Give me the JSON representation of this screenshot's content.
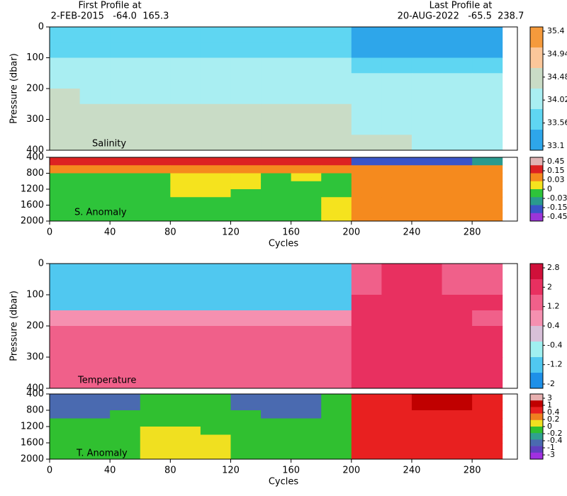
{
  "header": {
    "first_title": "First Profile at",
    "first_info": "2-FEB-2015   -64.0  165.3",
    "last_title": "Last Profile at",
    "last_info": "20-AUG-2022   -65.5  238.7"
  },
  "chart_data": [
    {
      "type": "heatmap",
      "label": "Salinity",
      "ylabel": "Pressure (dbar)",
      "yreversed": true,
      "xlim": [
        0,
        310
      ],
      "ylim": [
        0,
        400
      ],
      "yticks": [
        0,
        100,
        200,
        300,
        400
      ],
      "x": [
        10,
        30,
        50,
        70,
        90,
        110,
        130,
        150,
        170,
        190,
        210,
        230,
        250,
        270,
        290
      ],
      "y": [
        25,
        75,
        125,
        175,
        225,
        275,
        325,
        375
      ],
      "values": [
        [
          33.9,
          33.9,
          33.9,
          33.9,
          33.9,
          33.9,
          33.9,
          33.9,
          33.9,
          33.9,
          33.4,
          33.4,
          33.4,
          33.4,
          33.4
        ],
        [
          33.9,
          33.9,
          33.9,
          33.9,
          33.9,
          33.9,
          33.9,
          33.9,
          33.9,
          33.9,
          33.5,
          33.5,
          33.5,
          33.5,
          33.5
        ],
        [
          34.3,
          34.3,
          34.3,
          34.3,
          34.3,
          34.3,
          34.3,
          34.3,
          34.3,
          34.3,
          33.9,
          33.9,
          33.9,
          33.9,
          33.9
        ],
        [
          34.4,
          34.4,
          34.4,
          34.4,
          34.4,
          34.4,
          34.4,
          34.4,
          34.4,
          34.4,
          34.1,
          34.1,
          34.1,
          34.1,
          34.1
        ],
        [
          34.5,
          34.4,
          34.4,
          34.4,
          34.4,
          34.4,
          34.4,
          34.4,
          34.4,
          34.4,
          34.3,
          34.3,
          34.3,
          34.3,
          34.3
        ],
        [
          34.7,
          34.7,
          34.7,
          34.7,
          34.7,
          34.7,
          34.7,
          34.7,
          34.7,
          34.7,
          34.4,
          34.4,
          34.4,
          34.4,
          34.4
        ],
        [
          34.7,
          34.7,
          34.7,
          34.7,
          34.7,
          34.7,
          34.7,
          34.7,
          34.7,
          34.7,
          34.4,
          34.4,
          34.4,
          34.4,
          34.4
        ],
        [
          34.7,
          34.7,
          34.7,
          34.7,
          34.7,
          34.7,
          34.7,
          34.7,
          34.7,
          34.7,
          34.5,
          34.5,
          34.4,
          34.4,
          34.4
        ]
      ],
      "levels": [
        35.4,
        34.94,
        34.48,
        34.02,
        33.56,
        33.1
      ],
      "colors": [
        "#f59a3c",
        "#fbc79a",
        "#c9dcc6",
        "#a9eef2",
        "#5fd6f2",
        "#2ea6ea"
      ]
    },
    {
      "type": "heatmap",
      "label": "S. Anomaly",
      "xlabel": "Cycles",
      "yreversed": true,
      "xlim": [
        0,
        310
      ],
      "ylim": [
        400,
        2000
      ],
      "yticks": [
        400,
        800,
        1200,
        1600,
        2000
      ],
      "xticks": [
        0,
        40,
        80,
        120,
        160,
        200,
        240,
        280
      ],
      "x": [
        10,
        30,
        50,
        70,
        90,
        110,
        130,
        150,
        170,
        190,
        210,
        230,
        250,
        270,
        290
      ],
      "y": [
        500,
        700,
        900,
        1100,
        1300,
        1500,
        1700,
        1900
      ],
      "values": [
        [
          0.2,
          0.2,
          0.2,
          0.2,
          0.2,
          0.2,
          0.2,
          0.2,
          0.2,
          0.2,
          -0.2,
          -0.2,
          -0.2,
          -0.2,
          -0.1
        ],
        [
          0.1,
          0.1,
          0.1,
          0.1,
          0.1,
          0.1,
          0.1,
          0.1,
          0.1,
          0.1,
          0.1,
          0.1,
          0.1,
          0.1,
          0.1
        ],
        [
          -0.01,
          -0.01,
          -0.01,
          -0.01,
          0.01,
          0.01,
          0.01,
          -0.01,
          0.01,
          -0.01,
          0.05,
          0.05,
          0.05,
          0.05,
          0.05
        ],
        [
          -0.01,
          -0.01,
          -0.01,
          -0.01,
          0.01,
          0.01,
          0.01,
          -0.01,
          -0.01,
          -0.01,
          0.05,
          0.05,
          0.05,
          0.05,
          0.05
        ],
        [
          -0.01,
          -0.01,
          -0.01,
          -0.01,
          0.01,
          0.01,
          -0.01,
          -0.01,
          -0.01,
          -0.01,
          0.05,
          0.05,
          0.05,
          0.05,
          0.05
        ],
        [
          -0.01,
          -0.01,
          -0.01,
          -0.01,
          -0.01,
          -0.01,
          -0.01,
          -0.01,
          -0.01,
          0.01,
          0.05,
          0.05,
          0.05,
          0.05,
          0.05
        ],
        [
          -0.01,
          -0.01,
          -0.01,
          -0.01,
          -0.01,
          -0.01,
          -0.01,
          -0.01,
          -0.01,
          0.01,
          0.05,
          0.05,
          0.05,
          0.05,
          0.05
        ],
        [
          -0.01,
          -0.01,
          -0.01,
          -0.01,
          -0.01,
          -0.01,
          -0.01,
          -0.01,
          -0.01,
          0.01,
          0.05,
          0.05,
          0.05,
          0.05,
          0.05
        ]
      ],
      "levels": [
        0.45,
        0.15,
        0.03,
        0,
        -0.03,
        -0.15,
        -0.45
      ],
      "colors": [
        "#e0b4b4",
        "#dd2222",
        "#f58a1e",
        "#f5e31e",
        "#2ec43a",
        "#2a9a8e",
        "#3a55c8",
        "#9b35d8"
      ]
    },
    {
      "type": "heatmap",
      "label": "Temperature",
      "ylabel": "Pressure (dbar)",
      "yreversed": true,
      "xlim": [
        0,
        310
      ],
      "ylim": [
        0,
        400
      ],
      "yticks": [
        0,
        100,
        200,
        300,
        400
      ],
      "x": [
        10,
        30,
        50,
        70,
        90,
        110,
        130,
        150,
        170,
        190,
        210,
        230,
        250,
        270,
        290
      ],
      "y": [
        25,
        75,
        125,
        175,
        225,
        275,
        325,
        375
      ],
      "values": [
        [
          -1.7,
          -1.7,
          -1.7,
          -1.7,
          -1.7,
          -1.7,
          -1.7,
          -1.7,
          -1.7,
          -1.7,
          1.9,
          2.1,
          2.1,
          1.9,
          1.9
        ],
        [
          -1.7,
          -1.7,
          -1.7,
          -1.7,
          -1.7,
          -1.7,
          -1.7,
          -1.7,
          -1.7,
          -1.7,
          1.9,
          2.1,
          2.1,
          1.9,
          1.9
        ],
        [
          -1.5,
          -1.5,
          -1.5,
          -1.5,
          -1.5,
          -1.5,
          -1.5,
          -1.5,
          -1.5,
          -1.5,
          2.1,
          2.1,
          2.1,
          2.1,
          2.1
        ],
        [
          0.8,
          0.8,
          0.8,
          0.8,
          0.8,
          0.8,
          0.8,
          0.8,
          0.8,
          0.8,
          2.1,
          2.1,
          2.1,
          2.1,
          1.9
        ],
        [
          1.5,
          1.5,
          1.5,
          1.5,
          1.5,
          1.5,
          1.5,
          1.5,
          1.5,
          1.5,
          2.1,
          2.1,
          2.1,
          2.1,
          2.1
        ],
        [
          1.5,
          1.5,
          1.5,
          1.5,
          1.5,
          1.5,
          1.5,
          1.5,
          1.5,
          1.5,
          2.1,
          2.1,
          2.1,
          2.1,
          2.1
        ],
        [
          1.5,
          1.5,
          1.5,
          1.5,
          1.5,
          1.5,
          1.5,
          1.5,
          1.5,
          1.5,
          2.1,
          2.1,
          2.1,
          2.1,
          2.1
        ],
        [
          1.5,
          1.5,
          1.5,
          1.5,
          1.5,
          1.5,
          1.5,
          1.5,
          1.5,
          1.5,
          2.1,
          2.1,
          2.1,
          2.1,
          2.1
        ]
      ],
      "levels": [
        2.8,
        2,
        1.2,
        0.4,
        -0.4,
        -1.2,
        -2
      ],
      "colors": [
        "#d0103a",
        "#e83060",
        "#f0608a",
        "#f590b0",
        "#d8c0d8",
        "#a0f0f0",
        "#50c8f0",
        "#1e90e8"
      ]
    },
    {
      "type": "heatmap",
      "label": "T. Anomaly",
      "xlabel": "Cycles",
      "yreversed": true,
      "xlim": [
        0,
        310
      ],
      "ylim": [
        400,
        2000
      ],
      "yticks": [
        400,
        800,
        1200,
        1600,
        2000
      ],
      "xticks": [
        0,
        40,
        80,
        120,
        160,
        200,
        240,
        280
      ],
      "x": [
        10,
        30,
        50,
        70,
        90,
        110,
        130,
        150,
        170,
        190,
        210,
        230,
        250,
        270,
        290
      ],
      "y": [
        500,
        700,
        900,
        1100,
        1300,
        1500,
        1700,
        1900
      ],
      "values": [
        [
          -0.5,
          -0.5,
          -0.5,
          -0.1,
          -0.1,
          -0.1,
          -0.5,
          -0.5,
          -0.5,
          -0.1,
          0.6,
          0.6,
          1.2,
          1.2,
          0.6
        ],
        [
          -0.5,
          -0.5,
          -0.5,
          -0.1,
          -0.1,
          -0.1,
          -0.5,
          -0.5,
          -0.5,
          -0.1,
          0.6,
          0.6,
          1.2,
          1.2,
          0.6
        ],
        [
          -0.5,
          -0.5,
          -0.1,
          -0.1,
          -0.1,
          -0.1,
          -0.1,
          -0.5,
          -0.5,
          -0.1,
          0.6,
          0.6,
          0.6,
          0.6,
          0.6
        ],
        [
          -0.1,
          -0.1,
          -0.1,
          -0.1,
          -0.1,
          -0.1,
          -0.1,
          -0.1,
          -0.1,
          -0.1,
          0.5,
          0.5,
          0.5,
          0.5,
          0.5
        ],
        [
          -0.1,
          -0.1,
          -0.1,
          0.1,
          0.1,
          -0.1,
          -0.1,
          -0.1,
          -0.1,
          -0.1,
          0.5,
          0.5,
          0.5,
          0.5,
          0.5
        ],
        [
          -0.1,
          -0.1,
          -0.1,
          0.1,
          0.1,
          0.1,
          -0.1,
          -0.1,
          -0.1,
          -0.1,
          0.5,
          0.5,
          0.5,
          0.5,
          0.5
        ],
        [
          -0.1,
          -0.1,
          -0.1,
          0.1,
          0.1,
          0.1,
          -0.1,
          -0.1,
          -0.1,
          -0.1,
          0.5,
          0.5,
          0.5,
          0.5,
          0.5
        ],
        [
          -0.1,
          -0.1,
          -0.1,
          0.1,
          0.1,
          0.1,
          -0.1,
          -0.1,
          -0.1,
          -0.1,
          0.5,
          0.5,
          0.5,
          0.5,
          0.5
        ]
      ],
      "levels": [
        3,
        1,
        0.4,
        0.2,
        0,
        -0.2,
        -0.4,
        -1,
        -3
      ],
      "colors": [
        "#e8b0b0",
        "#c00000",
        "#e82020",
        "#f08020",
        "#f0e020",
        "#30c030",
        "#30a090",
        "#4a6ab0",
        "#6040c0",
        "#a030e0"
      ]
    }
  ]
}
